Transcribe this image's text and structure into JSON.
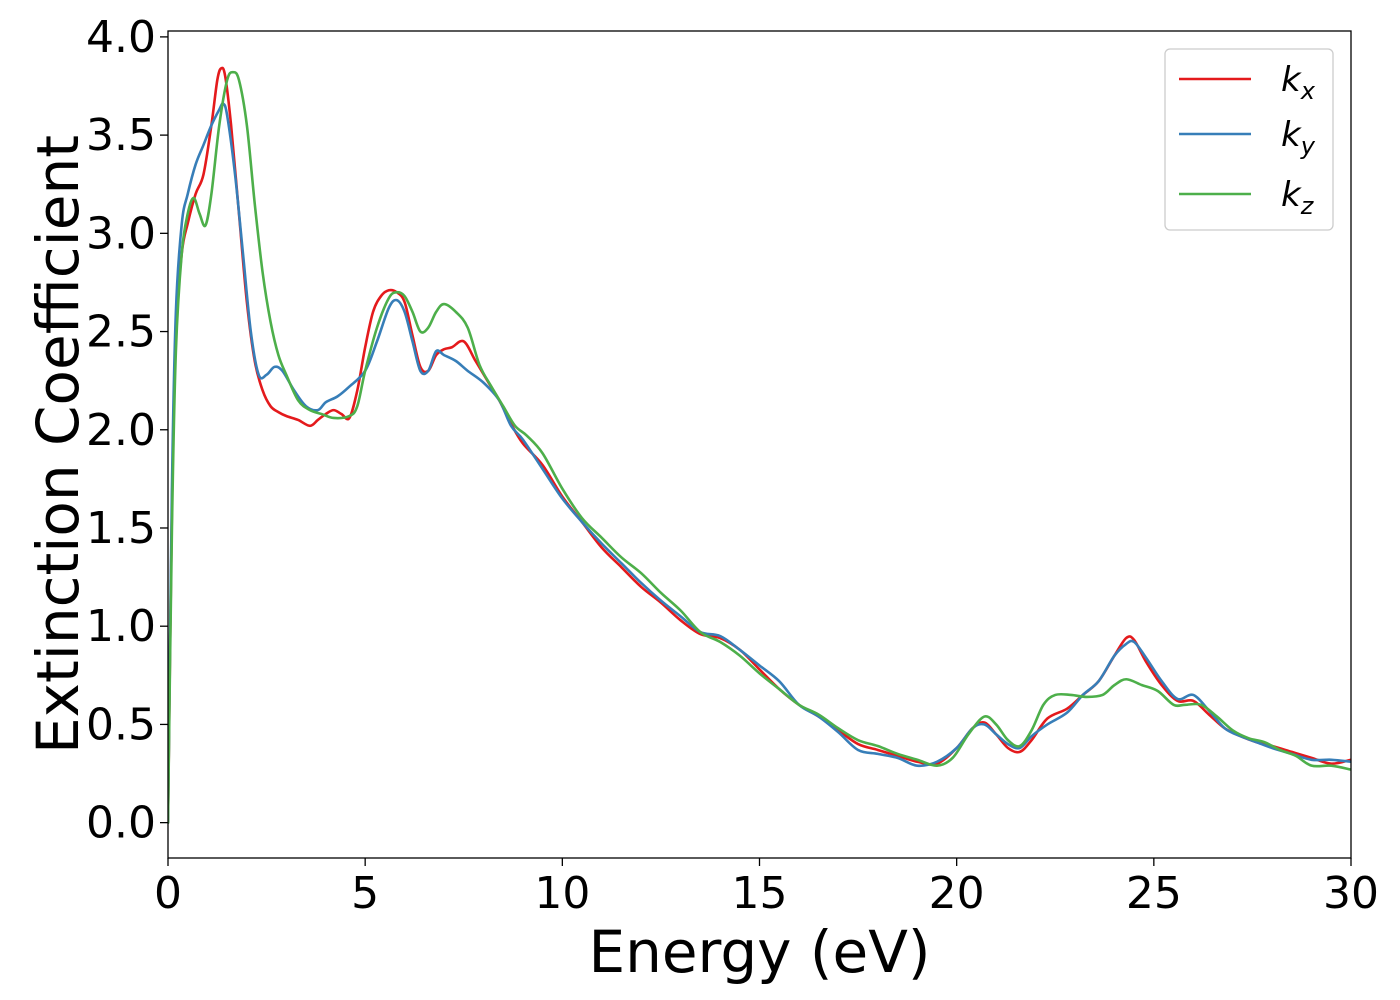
{
  "chart_data": {
    "type": "line",
    "title": "",
    "xlabel": "Energy (eV)",
    "ylabel": "Extinction Coefficient",
    "xlim": [
      0,
      30
    ],
    "ylim": [
      -0.18,
      4.03
    ],
    "xticks": [
      0,
      5,
      10,
      15,
      20,
      25,
      30
    ],
    "xtick_labels": [
      "0",
      "5",
      "10",
      "15",
      "20",
      "25",
      "30"
    ],
    "yticks": [
      0.0,
      0.5,
      1.0,
      1.5,
      2.0,
      2.5,
      3.0,
      3.5,
      4.0
    ],
    "ytick_labels": [
      "0.0",
      "0.5",
      "1.0",
      "1.5",
      "2.0",
      "2.5",
      "3.0",
      "3.5",
      "4.0"
    ],
    "grid": false,
    "legend_position": "top-right",
    "series": [
      {
        "name": "k",
        "subscript": "x",
        "color": "#e41a1c",
        "points": [
          [
            0,
            0
          ],
          [
            0.1,
            1.6
          ],
          [
            0.2,
            2.5
          ],
          [
            0.35,
            2.9
          ],
          [
            0.5,
            3.05
          ],
          [
            0.7,
            3.2
          ],
          [
            0.9,
            3.3
          ],
          [
            1.1,
            3.55
          ],
          [
            1.25,
            3.78
          ],
          [
            1.35,
            3.84
          ],
          [
            1.45,
            3.8
          ],
          [
            1.6,
            3.55
          ],
          [
            1.8,
            3.1
          ],
          [
            2.0,
            2.65
          ],
          [
            2.2,
            2.35
          ],
          [
            2.4,
            2.2
          ],
          [
            2.6,
            2.12
          ],
          [
            2.8,
            2.09
          ],
          [
            3.0,
            2.07
          ],
          [
            3.3,
            2.05
          ],
          [
            3.6,
            2.02
          ],
          [
            3.8,
            2.05
          ],
          [
            4.0,
            2.08
          ],
          [
            4.2,
            2.1
          ],
          [
            4.4,
            2.08
          ],
          [
            4.6,
            2.06
          ],
          [
            4.8,
            2.2
          ],
          [
            5.0,
            2.42
          ],
          [
            5.2,
            2.6
          ],
          [
            5.4,
            2.68
          ],
          [
            5.6,
            2.71
          ],
          [
            5.8,
            2.7
          ],
          [
            6.0,
            2.65
          ],
          [
            6.2,
            2.48
          ],
          [
            6.4,
            2.32
          ],
          [
            6.6,
            2.3
          ],
          [
            6.8,
            2.38
          ],
          [
            7.0,
            2.41
          ],
          [
            7.2,
            2.42
          ],
          [
            7.5,
            2.45
          ],
          [
            7.8,
            2.35
          ],
          [
            8.1,
            2.25
          ],
          [
            8.4,
            2.15
          ],
          [
            8.7,
            2.03
          ],
          [
            9.0,
            1.93
          ],
          [
            9.5,
            1.82
          ],
          [
            10.0,
            1.66
          ],
          [
            10.5,
            1.53
          ],
          [
            11.0,
            1.4
          ],
          [
            11.5,
            1.3
          ],
          [
            12.0,
            1.2
          ],
          [
            12.5,
            1.12
          ],
          [
            13.0,
            1.03
          ],
          [
            13.5,
            0.96
          ],
          [
            14.0,
            0.94
          ],
          [
            14.5,
            0.88
          ],
          [
            15.0,
            0.78
          ],
          [
            15.5,
            0.68
          ],
          [
            16.0,
            0.6
          ],
          [
            16.5,
            0.54
          ],
          [
            17.0,
            0.47
          ],
          [
            17.5,
            0.4
          ],
          [
            18.0,
            0.37
          ],
          [
            18.5,
            0.34
          ],
          [
            19.0,
            0.31
          ],
          [
            19.5,
            0.3
          ],
          [
            20.0,
            0.38
          ],
          [
            20.4,
            0.48
          ],
          [
            20.7,
            0.51
          ],
          [
            21.0,
            0.45
          ],
          [
            21.3,
            0.38
          ],
          [
            21.6,
            0.36
          ],
          [
            21.9,
            0.42
          ],
          [
            22.3,
            0.53
          ],
          [
            22.8,
            0.58
          ],
          [
            23.2,
            0.65
          ],
          [
            23.6,
            0.72
          ],
          [
            24.0,
            0.85
          ],
          [
            24.3,
            0.94
          ],
          [
            24.5,
            0.93
          ],
          [
            24.8,
            0.82
          ],
          [
            25.2,
            0.7
          ],
          [
            25.6,
            0.62
          ],
          [
            26.0,
            0.62
          ],
          [
            26.4,
            0.55
          ],
          [
            26.8,
            0.48
          ],
          [
            27.2,
            0.44
          ],
          [
            27.6,
            0.41
          ],
          [
            28.0,
            0.39
          ],
          [
            28.5,
            0.36
          ],
          [
            29.0,
            0.33
          ],
          [
            29.5,
            0.3
          ],
          [
            30.0,
            0.32
          ]
        ]
      },
      {
        "name": "k",
        "subscript": "y",
        "color": "#377eb8",
        "points": [
          [
            0,
            0
          ],
          [
            0.1,
            1.7
          ],
          [
            0.2,
            2.6
          ],
          [
            0.35,
            3.05
          ],
          [
            0.5,
            3.2
          ],
          [
            0.7,
            3.35
          ],
          [
            0.9,
            3.45
          ],
          [
            1.1,
            3.55
          ],
          [
            1.3,
            3.63
          ],
          [
            1.4,
            3.66
          ],
          [
            1.5,
            3.6
          ],
          [
            1.7,
            3.3
          ],
          [
            1.9,
            2.9
          ],
          [
            2.1,
            2.5
          ],
          [
            2.3,
            2.28
          ],
          [
            2.5,
            2.28
          ],
          [
            2.7,
            2.32
          ],
          [
            2.9,
            2.3
          ],
          [
            3.2,
            2.2
          ],
          [
            3.5,
            2.12
          ],
          [
            3.8,
            2.1
          ],
          [
            4.0,
            2.14
          ],
          [
            4.3,
            2.17
          ],
          [
            4.6,
            2.22
          ],
          [
            5.0,
            2.3
          ],
          [
            5.3,
            2.45
          ],
          [
            5.6,
            2.62
          ],
          [
            5.8,
            2.66
          ],
          [
            6.0,
            2.6
          ],
          [
            6.2,
            2.45
          ],
          [
            6.4,
            2.3
          ],
          [
            6.6,
            2.3
          ],
          [
            6.8,
            2.4
          ],
          [
            7.0,
            2.38
          ],
          [
            7.3,
            2.35
          ],
          [
            7.6,
            2.3
          ],
          [
            8.0,
            2.24
          ],
          [
            8.4,
            2.15
          ],
          [
            8.7,
            2.02
          ],
          [
            9.0,
            1.95
          ],
          [
            9.5,
            1.8
          ],
          [
            10.0,
            1.65
          ],
          [
            10.5,
            1.53
          ],
          [
            11.0,
            1.42
          ],
          [
            11.5,
            1.32
          ],
          [
            12.0,
            1.22
          ],
          [
            12.5,
            1.13
          ],
          [
            13.0,
            1.05
          ],
          [
            13.5,
            0.97
          ],
          [
            14.0,
            0.95
          ],
          [
            14.5,
            0.88
          ],
          [
            15.0,
            0.8
          ],
          [
            15.5,
            0.72
          ],
          [
            16.0,
            0.6
          ],
          [
            16.5,
            0.54
          ],
          [
            17.0,
            0.46
          ],
          [
            17.5,
            0.37
          ],
          [
            18.0,
            0.35
          ],
          [
            18.5,
            0.33
          ],
          [
            19.0,
            0.29
          ],
          [
            19.5,
            0.31
          ],
          [
            20.0,
            0.38
          ],
          [
            20.4,
            0.48
          ],
          [
            20.7,
            0.5
          ],
          [
            21.0,
            0.45
          ],
          [
            21.3,
            0.4
          ],
          [
            21.6,
            0.38
          ],
          [
            21.9,
            0.44
          ],
          [
            22.3,
            0.5
          ],
          [
            22.8,
            0.56
          ],
          [
            23.2,
            0.65
          ],
          [
            23.6,
            0.72
          ],
          [
            24.0,
            0.85
          ],
          [
            24.3,
            0.91
          ],
          [
            24.5,
            0.92
          ],
          [
            24.8,
            0.84
          ],
          [
            25.2,
            0.72
          ],
          [
            25.6,
            0.63
          ],
          [
            26.0,
            0.65
          ],
          [
            26.4,
            0.57
          ],
          [
            26.8,
            0.48
          ],
          [
            27.2,
            0.44
          ],
          [
            27.6,
            0.41
          ],
          [
            28.0,
            0.38
          ],
          [
            28.5,
            0.35
          ],
          [
            29.0,
            0.32
          ],
          [
            29.5,
            0.32
          ],
          [
            30.0,
            0.31
          ]
        ]
      },
      {
        "name": "k",
        "subscript": "z",
        "color": "#4daf4a",
        "points": [
          [
            0,
            0
          ],
          [
            0.1,
            1.5
          ],
          [
            0.2,
            2.4
          ],
          [
            0.35,
            2.9
          ],
          [
            0.5,
            3.1
          ],
          [
            0.65,
            3.18
          ],
          [
            0.8,
            3.1
          ],
          [
            0.95,
            3.04
          ],
          [
            1.1,
            3.2
          ],
          [
            1.3,
            3.55
          ],
          [
            1.5,
            3.78
          ],
          [
            1.65,
            3.82
          ],
          [
            1.8,
            3.78
          ],
          [
            2.0,
            3.55
          ],
          [
            2.2,
            3.15
          ],
          [
            2.4,
            2.8
          ],
          [
            2.6,
            2.55
          ],
          [
            2.8,
            2.38
          ],
          [
            3.0,
            2.28
          ],
          [
            3.3,
            2.15
          ],
          [
            3.6,
            2.1
          ],
          [
            3.9,
            2.08
          ],
          [
            4.2,
            2.06
          ],
          [
            4.6,
            2.07
          ],
          [
            4.8,
            2.12
          ],
          [
            5.0,
            2.3
          ],
          [
            5.3,
            2.52
          ],
          [
            5.6,
            2.67
          ],
          [
            5.8,
            2.7
          ],
          [
            6.0,
            2.68
          ],
          [
            6.2,
            2.6
          ],
          [
            6.4,
            2.5
          ],
          [
            6.6,
            2.52
          ],
          [
            6.8,
            2.6
          ],
          [
            7.0,
            2.64
          ],
          [
            7.3,
            2.6
          ],
          [
            7.6,
            2.52
          ],
          [
            7.9,
            2.33
          ],
          [
            8.2,
            2.22
          ],
          [
            8.5,
            2.12
          ],
          [
            8.8,
            2.02
          ],
          [
            9.1,
            1.97
          ],
          [
            9.5,
            1.88
          ],
          [
            10.0,
            1.7
          ],
          [
            10.5,
            1.55
          ],
          [
            11.0,
            1.45
          ],
          [
            11.5,
            1.35
          ],
          [
            12.0,
            1.27
          ],
          [
            12.5,
            1.17
          ],
          [
            13.0,
            1.08
          ],
          [
            13.5,
            0.97
          ],
          [
            14.0,
            0.92
          ],
          [
            14.5,
            0.85
          ],
          [
            15.0,
            0.76
          ],
          [
            15.5,
            0.68
          ],
          [
            16.0,
            0.6
          ],
          [
            16.5,
            0.55
          ],
          [
            17.0,
            0.48
          ],
          [
            17.5,
            0.42
          ],
          [
            18.0,
            0.39
          ],
          [
            18.5,
            0.35
          ],
          [
            19.0,
            0.32
          ],
          [
            19.5,
            0.29
          ],
          [
            19.9,
            0.33
          ],
          [
            20.3,
            0.45
          ],
          [
            20.7,
            0.54
          ],
          [
            21.0,
            0.5
          ],
          [
            21.3,
            0.42
          ],
          [
            21.6,
            0.39
          ],
          [
            21.9,
            0.47
          ],
          [
            22.2,
            0.6
          ],
          [
            22.5,
            0.65
          ],
          [
            22.9,
            0.65
          ],
          [
            23.3,
            0.64
          ],
          [
            23.7,
            0.65
          ],
          [
            24.0,
            0.7
          ],
          [
            24.3,
            0.73
          ],
          [
            24.7,
            0.7
          ],
          [
            25.1,
            0.67
          ],
          [
            25.5,
            0.6
          ],
          [
            25.8,
            0.6
          ],
          [
            26.2,
            0.6
          ],
          [
            26.6,
            0.54
          ],
          [
            27.0,
            0.47
          ],
          [
            27.4,
            0.43
          ],
          [
            27.8,
            0.41
          ],
          [
            28.2,
            0.37
          ],
          [
            28.6,
            0.34
          ],
          [
            29.0,
            0.29
          ],
          [
            29.5,
            0.29
          ],
          [
            30.0,
            0.27
          ]
        ]
      }
    ]
  }
}
